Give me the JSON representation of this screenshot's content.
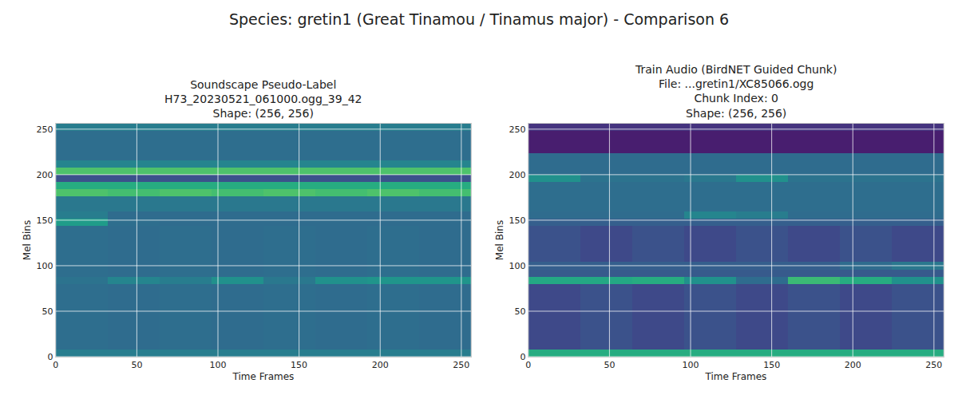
{
  "title": "Species: gretin1 (Great Tinamou / Tinamus major) - Comparison 6",
  "chart_data": [
    {
      "type": "heatmap",
      "title": "Soundscape Pseudo-Label\nH73_20230521_061000.ogg_39_42\nShape: (256, 256)",
      "x_label": "Time Frames",
      "y_label": "Mel Bins",
      "xlim": [
        0,
        256
      ],
      "ylim": [
        0,
        256
      ],
      "xticks": [
        0,
        50,
        100,
        150,
        200,
        250
      ],
      "yticks": [
        0,
        50,
        100,
        150,
        200,
        250
      ],
      "grid": true,
      "color": "Viridis",
      "zlim": [
        0,
        1
      ],
      "x_edges": [
        0,
        32,
        64,
        96,
        128,
        160,
        192,
        224,
        256
      ],
      "y_edges": [
        0,
        8,
        16,
        24,
        32,
        40,
        48,
        56,
        64,
        72,
        80,
        88,
        96,
        104,
        112,
        120,
        128,
        136,
        144,
        152,
        160,
        168,
        176,
        184,
        192,
        200,
        208,
        216,
        224,
        232,
        240,
        248,
        256
      ],
      "cells": [
        [
          0.42,
          0.42,
          0.42,
          0.42,
          0.42,
          0.42,
          0.42,
          0.42
        ],
        [
          0.36,
          0.35,
          0.36,
          0.35,
          0.36,
          0.35,
          0.36,
          0.35
        ],
        [
          0.36,
          0.35,
          0.36,
          0.35,
          0.36,
          0.35,
          0.36,
          0.35
        ],
        [
          0.36,
          0.35,
          0.36,
          0.35,
          0.36,
          0.35,
          0.36,
          0.35
        ],
        [
          0.36,
          0.35,
          0.36,
          0.35,
          0.36,
          0.35,
          0.36,
          0.35
        ],
        [
          0.36,
          0.35,
          0.36,
          0.35,
          0.36,
          0.35,
          0.36,
          0.35
        ],
        [
          0.36,
          0.35,
          0.36,
          0.35,
          0.36,
          0.35,
          0.36,
          0.35
        ],
        [
          0.36,
          0.35,
          0.36,
          0.35,
          0.36,
          0.35,
          0.36,
          0.35
        ],
        [
          0.36,
          0.35,
          0.36,
          0.35,
          0.36,
          0.35,
          0.36,
          0.35
        ],
        [
          0.36,
          0.35,
          0.36,
          0.35,
          0.36,
          0.35,
          0.36,
          0.35
        ],
        [
          0.38,
          0.45,
          0.42,
          0.5,
          0.4,
          0.5,
          0.52,
          0.52
        ],
        [
          0.36,
          0.35,
          0.36,
          0.35,
          0.36,
          0.35,
          0.36,
          0.35
        ],
        [
          0.36,
          0.35,
          0.36,
          0.35,
          0.36,
          0.35,
          0.36,
          0.35
        ],
        [
          0.36,
          0.35,
          0.36,
          0.35,
          0.36,
          0.35,
          0.36,
          0.35
        ],
        [
          0.36,
          0.35,
          0.36,
          0.35,
          0.36,
          0.35,
          0.36,
          0.35
        ],
        [
          0.36,
          0.35,
          0.36,
          0.35,
          0.36,
          0.35,
          0.36,
          0.35
        ],
        [
          0.36,
          0.35,
          0.36,
          0.35,
          0.36,
          0.35,
          0.36,
          0.35
        ],
        [
          0.36,
          0.35,
          0.36,
          0.35,
          0.36,
          0.35,
          0.36,
          0.35
        ],
        [
          0.55,
          0.36,
          0.35,
          0.35,
          0.35,
          0.35,
          0.35,
          0.35
        ],
        [
          0.42,
          0.35,
          0.35,
          0.35,
          0.35,
          0.35,
          0.35,
          0.35
        ],
        [
          0.4,
          0.4,
          0.4,
          0.4,
          0.4,
          0.4,
          0.4,
          0.4
        ],
        [
          0.4,
          0.4,
          0.4,
          0.4,
          0.4,
          0.4,
          0.4,
          0.4
        ],
        [
          0.72,
          0.7,
          0.72,
          0.7,
          0.72,
          0.7,
          0.72,
          0.7
        ],
        [
          0.62,
          0.62,
          0.62,
          0.62,
          0.62,
          0.62,
          0.62,
          0.62
        ],
        [
          0.25,
          0.25,
          0.25,
          0.25,
          0.25,
          0.25,
          0.25,
          0.25
        ],
        [
          0.72,
          0.72,
          0.72,
          0.72,
          0.72,
          0.72,
          0.72,
          0.72
        ],
        [
          0.45,
          0.45,
          0.45,
          0.45,
          0.45,
          0.45,
          0.45,
          0.45
        ],
        [
          0.36,
          0.36,
          0.36,
          0.36,
          0.36,
          0.36,
          0.36,
          0.36
        ],
        [
          0.36,
          0.36,
          0.36,
          0.36,
          0.36,
          0.36,
          0.36,
          0.36
        ],
        [
          0.36,
          0.36,
          0.36,
          0.36,
          0.36,
          0.36,
          0.36,
          0.36
        ],
        [
          0.36,
          0.36,
          0.36,
          0.36,
          0.36,
          0.36,
          0.36,
          0.36
        ],
        [
          0.42,
          0.42,
          0.42,
          0.42,
          0.42,
          0.42,
          0.42,
          0.42
        ]
      ]
    },
    {
      "type": "heatmap",
      "title": "Train Audio (BirdNET Guided Chunk)\nFile: ...gretin1/XC85066.ogg\nChunk Index: 0\nShape: (256, 256)",
      "x_label": "Time Frames",
      "y_label": "Mel Bins",
      "xlim": [
        0,
        256
      ],
      "ylim": [
        0,
        256
      ],
      "xticks": [
        0,
        50,
        100,
        150,
        200,
        250
      ],
      "yticks": [
        0,
        50,
        100,
        150,
        200,
        250
      ],
      "grid": true,
      "color": "Viridis",
      "zlim": [
        0,
        1
      ],
      "x_edges": [
        0,
        32,
        64,
        96,
        128,
        160,
        192,
        224,
        256
      ],
      "y_edges": [
        0,
        8,
        16,
        24,
        32,
        40,
        48,
        56,
        64,
        72,
        80,
        88,
        96,
        104,
        112,
        120,
        128,
        136,
        144,
        152,
        160,
        168,
        176,
        184,
        192,
        200,
        208,
        216,
        224,
        232,
        240,
        248,
        256
      ],
      "cells": [
        [
          0.62,
          0.62,
          0.62,
          0.62,
          0.62,
          0.62,
          0.62,
          0.62
        ],
        [
          0.22,
          0.25,
          0.22,
          0.25,
          0.22,
          0.25,
          0.22,
          0.25
        ],
        [
          0.22,
          0.25,
          0.22,
          0.25,
          0.22,
          0.25,
          0.22,
          0.25
        ],
        [
          0.22,
          0.25,
          0.22,
          0.25,
          0.22,
          0.25,
          0.22,
          0.25
        ],
        [
          0.22,
          0.25,
          0.22,
          0.25,
          0.22,
          0.25,
          0.22,
          0.25
        ],
        [
          0.22,
          0.25,
          0.22,
          0.25,
          0.22,
          0.25,
          0.22,
          0.25
        ],
        [
          0.22,
          0.25,
          0.22,
          0.25,
          0.22,
          0.25,
          0.22,
          0.25
        ],
        [
          0.22,
          0.25,
          0.22,
          0.25,
          0.22,
          0.25,
          0.22,
          0.25
        ],
        [
          0.22,
          0.25,
          0.22,
          0.25,
          0.22,
          0.25,
          0.22,
          0.25
        ],
        [
          0.22,
          0.25,
          0.22,
          0.25,
          0.22,
          0.25,
          0.22,
          0.25
        ],
        [
          0.6,
          0.6,
          0.62,
          0.5,
          0.35,
          0.68,
          0.62,
          0.5
        ],
        [
          0.28,
          0.28,
          0.28,
          0.28,
          0.28,
          0.28,
          0.28,
          0.28
        ],
        [
          0.3,
          0.3,
          0.3,
          0.3,
          0.3,
          0.3,
          0.35,
          0.4
        ],
        [
          0.25,
          0.22,
          0.25,
          0.22,
          0.25,
          0.22,
          0.25,
          0.22
        ],
        [
          0.25,
          0.22,
          0.25,
          0.22,
          0.25,
          0.22,
          0.25,
          0.22
        ],
        [
          0.25,
          0.22,
          0.25,
          0.22,
          0.25,
          0.22,
          0.25,
          0.22
        ],
        [
          0.25,
          0.22,
          0.25,
          0.22,
          0.25,
          0.22,
          0.25,
          0.22
        ],
        [
          0.25,
          0.22,
          0.25,
          0.22,
          0.25,
          0.22,
          0.25,
          0.22
        ],
        [
          0.3,
          0.3,
          0.3,
          0.3,
          0.3,
          0.3,
          0.3,
          0.3
        ],
        [
          0.35,
          0.35,
          0.35,
          0.45,
          0.42,
          0.35,
          0.35,
          0.35
        ],
        [
          0.36,
          0.36,
          0.36,
          0.36,
          0.36,
          0.36,
          0.36,
          0.36
        ],
        [
          0.36,
          0.36,
          0.36,
          0.36,
          0.36,
          0.36,
          0.36,
          0.36
        ],
        [
          0.36,
          0.36,
          0.36,
          0.36,
          0.36,
          0.36,
          0.36,
          0.36
        ],
        [
          0.36,
          0.36,
          0.36,
          0.36,
          0.36,
          0.36,
          0.36,
          0.36
        ],
        [
          0.5,
          0.38,
          0.38,
          0.4,
          0.5,
          0.38,
          0.38,
          0.38
        ],
        [
          0.35,
          0.35,
          0.35,
          0.35,
          0.35,
          0.35,
          0.35,
          0.35
        ],
        [
          0.35,
          0.35,
          0.35,
          0.35,
          0.35,
          0.35,
          0.35,
          0.35
        ],
        [
          0.35,
          0.35,
          0.35,
          0.35,
          0.35,
          0.35,
          0.35,
          0.35
        ],
        [
          0.08,
          0.08,
          0.08,
          0.08,
          0.08,
          0.08,
          0.08,
          0.08
        ],
        [
          0.08,
          0.08,
          0.08,
          0.08,
          0.08,
          0.08,
          0.08,
          0.08
        ],
        [
          0.08,
          0.08,
          0.08,
          0.08,
          0.08,
          0.08,
          0.08,
          0.08
        ],
        [
          0.15,
          0.15,
          0.15,
          0.15,
          0.15,
          0.15,
          0.15,
          0.15
        ]
      ]
    }
  ]
}
